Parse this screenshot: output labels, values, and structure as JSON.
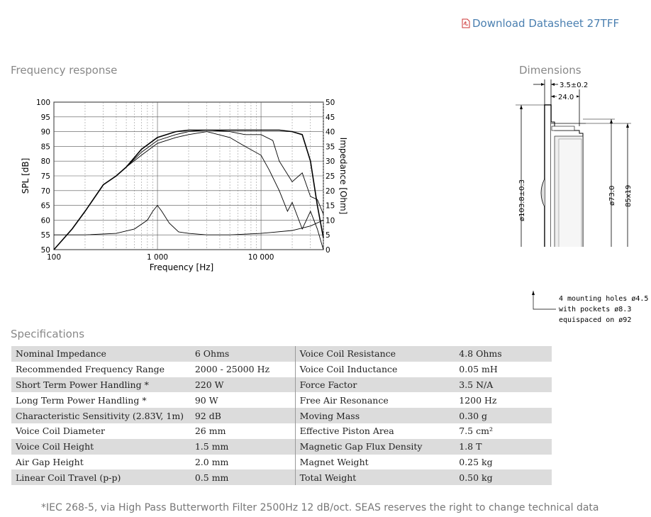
{
  "download": {
    "label": "Download Datasheet 27TFF"
  },
  "frequency_response": {
    "title": "Frequency response",
    "chart_data": {
      "type": "line",
      "xlabel": "Frequency [Hz]",
      "ylabel": "SPL [dB]",
      "y2label": "Impedance [Ohm]",
      "xscale": "log",
      "xlim": [
        100,
        40000
      ],
      "ylim": [
        50,
        100
      ],
      "y2lim": [
        0,
        50
      ],
      "x_ticks": [
        "100",
        "1 000",
        "10 000"
      ],
      "y_ticks": [
        "50",
        "55",
        "60",
        "65",
        "70",
        "75",
        "80",
        "85",
        "90",
        "95",
        "100"
      ],
      "y2_ticks": [
        "0",
        "5",
        "10",
        "15",
        "20",
        "25",
        "30",
        "35",
        "40",
        "45",
        "50"
      ],
      "grid": true,
      "series": [
        {
          "axis": "left",
          "color": "#000000",
          "x": [
            100,
            150,
            200,
            300,
            400,
            500,
            700,
            1000,
            1500,
            2000,
            3000,
            5000,
            7000,
            10000,
            15000,
            20000,
            25000,
            30000,
            35000,
            40000
          ],
          "values": [
            50,
            57,
            63,
            72,
            75,
            78,
            84,
            88,
            90,
            90.5,
            90.5,
            90.5,
            90.5,
            90.5,
            90.5,
            90,
            89,
            80,
            65,
            54
          ]
        },
        {
          "axis": "left",
          "color": "#000000",
          "x": [
            500,
            700,
            1000,
            1500,
            2000,
            3000,
            5000,
            7000,
            10000,
            13000,
            15000,
            20000,
            25000,
            30000,
            35000,
            40000
          ],
          "values": [
            78,
            83,
            87,
            89,
            90,
            90.5,
            90,
            89,
            89,
            87,
            80,
            73,
            76,
            68,
            67,
            62
          ]
        },
        {
          "axis": "left",
          "color": "#000000",
          "x": [
            500,
            700,
            1000,
            1500,
            2000,
            3000,
            5000,
            7000,
            10000,
            12000,
            15000,
            18000,
            20000,
            25000,
            30000,
            35000,
            40000
          ],
          "values": [
            78,
            82,
            86,
            88,
            89,
            90,
            88,
            85,
            82,
            77,
            70,
            63,
            66,
            57,
            63,
            57,
            50
          ]
        },
        {
          "axis": "right",
          "color": "#000000",
          "x": [
            100,
            200,
            400,
            600,
            800,
            900,
            1000,
            1100,
            1300,
            1600,
            2000,
            3000,
            5000,
            10000,
            20000,
            30000,
            40000
          ],
          "values": [
            5,
            5,
            5.5,
            7,
            10,
            13,
            15,
            13,
            9,
            6,
            5.5,
            5,
            5,
            5.5,
            6.5,
            8,
            10
          ]
        }
      ]
    }
  },
  "dimensions": {
    "title": "Dimensions",
    "labels": [
      "3.5±0.2",
      "24.0",
      "ø103.8±0.3",
      "ø73.0",
      "85x19"
    ],
    "note": [
      "4 mounting holes ø4.5",
      "with pockets ø8.3",
      "equispaced on ø92"
    ]
  },
  "specifications": {
    "title": "Specifications",
    "rows": [
      [
        "Nominal Impedance",
        "6 Ohms",
        "Voice Coil Resistance",
        "4.8 Ohms"
      ],
      [
        "Recommended Frequency Range",
        "2000 - 25000 Hz",
        "Voice Coil Inductance",
        "0.05 mH"
      ],
      [
        "Short Term Power Handling *",
        "220 W",
        "Force Factor",
        "3.5 N/A"
      ],
      [
        "Long Term Power Handling *",
        "90 W",
        "Free Air Resonance",
        "1200 Hz"
      ],
      [
        "Characteristic Sensitivity (2.83V, 1m)",
        "92 dB",
        "Moving Mass",
        "0.30 g"
      ],
      [
        "Voice Coil Diameter",
        "26 mm",
        "Effective Piston Area",
        "7.5 cm²"
      ],
      [
        "Voice Coil Height",
        "1.5 mm",
        "Magnetic Gap Flux Density",
        "1.8 T"
      ],
      [
        "Air Gap Height",
        "2.0 mm",
        "Magnet Weight",
        "0.25 kg"
      ],
      [
        "Linear Coil Travel (p-p)",
        "0.5 mm",
        "Total Weight",
        "0.50 kg"
      ]
    ],
    "footnote": "*IEC 268-5, via High Pass Butterworth Filter 2500Hz 12 dB/oct. SEAS reserves the right to change technical data"
  }
}
